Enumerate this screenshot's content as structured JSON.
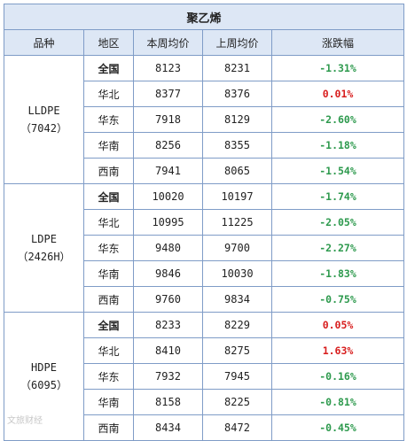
{
  "title": "聚乙烯",
  "headers": [
    "品种",
    "地区",
    "本周均价",
    "上周均价",
    "涨跌幅"
  ],
  "groups": [
    {
      "name": "LLDPE",
      "code": "（7042）",
      "rows": [
        {
          "region": "全国",
          "this_week": "8123",
          "last_week": "8231",
          "change": "-1.31%",
          "dir": "down",
          "bold": true
        },
        {
          "region": "华北",
          "this_week": "8377",
          "last_week": "8376",
          "change": "0.01%",
          "dir": "up",
          "bold": false
        },
        {
          "region": "华东",
          "this_week": "7918",
          "last_week": "8129",
          "change": "-2.60%",
          "dir": "down",
          "bold": false
        },
        {
          "region": "华南",
          "this_week": "8256",
          "last_week": "8355",
          "change": "-1.18%",
          "dir": "down",
          "bold": false
        },
        {
          "region": "西南",
          "this_week": "7941",
          "last_week": "8065",
          "change": "-1.54%",
          "dir": "down",
          "bold": false
        }
      ]
    },
    {
      "name": "LDPE",
      "code": "（2426H）",
      "rows": [
        {
          "region": "全国",
          "this_week": "10020",
          "last_week": "10197",
          "change": "-1.74%",
          "dir": "down",
          "bold": true
        },
        {
          "region": "华北",
          "this_week": "10995",
          "last_week": "11225",
          "change": "-2.05%",
          "dir": "down",
          "bold": false
        },
        {
          "region": "华东",
          "this_week": "9480",
          "last_week": "9700",
          "change": "-2.27%",
          "dir": "down",
          "bold": false
        },
        {
          "region": "华南",
          "this_week": "9846",
          "last_week": "10030",
          "change": "-1.83%",
          "dir": "down",
          "bold": false
        },
        {
          "region": "西南",
          "this_week": "9760",
          "last_week": "9834",
          "change": "-0.75%",
          "dir": "down",
          "bold": false
        }
      ]
    },
    {
      "name": "HDPE",
      "code": "（6095）",
      "rows": [
        {
          "region": "全国",
          "this_week": "8233",
          "last_week": "8229",
          "change": "0.05%",
          "dir": "up",
          "bold": true
        },
        {
          "region": "华北",
          "this_week": "8410",
          "last_week": "8275",
          "change": "1.63%",
          "dir": "up",
          "bold": false
        },
        {
          "region": "华东",
          "this_week": "7932",
          "last_week": "7945",
          "change": "-0.16%",
          "dir": "down",
          "bold": false
        },
        {
          "region": "华南",
          "this_week": "8158",
          "last_week": "8225",
          "change": "-0.81%",
          "dir": "down",
          "bold": false
        },
        {
          "region": "西南",
          "this_week": "8434",
          "last_week": "8472",
          "change": "-0.45%",
          "dir": "down",
          "bold": false
        }
      ]
    }
  ],
  "colors": {
    "down": "#2e9a4e",
    "up": "#d81e1e",
    "header_bg": "#dde7f5",
    "border": "#7f9cc7"
  },
  "watermark": "文旅财经"
}
